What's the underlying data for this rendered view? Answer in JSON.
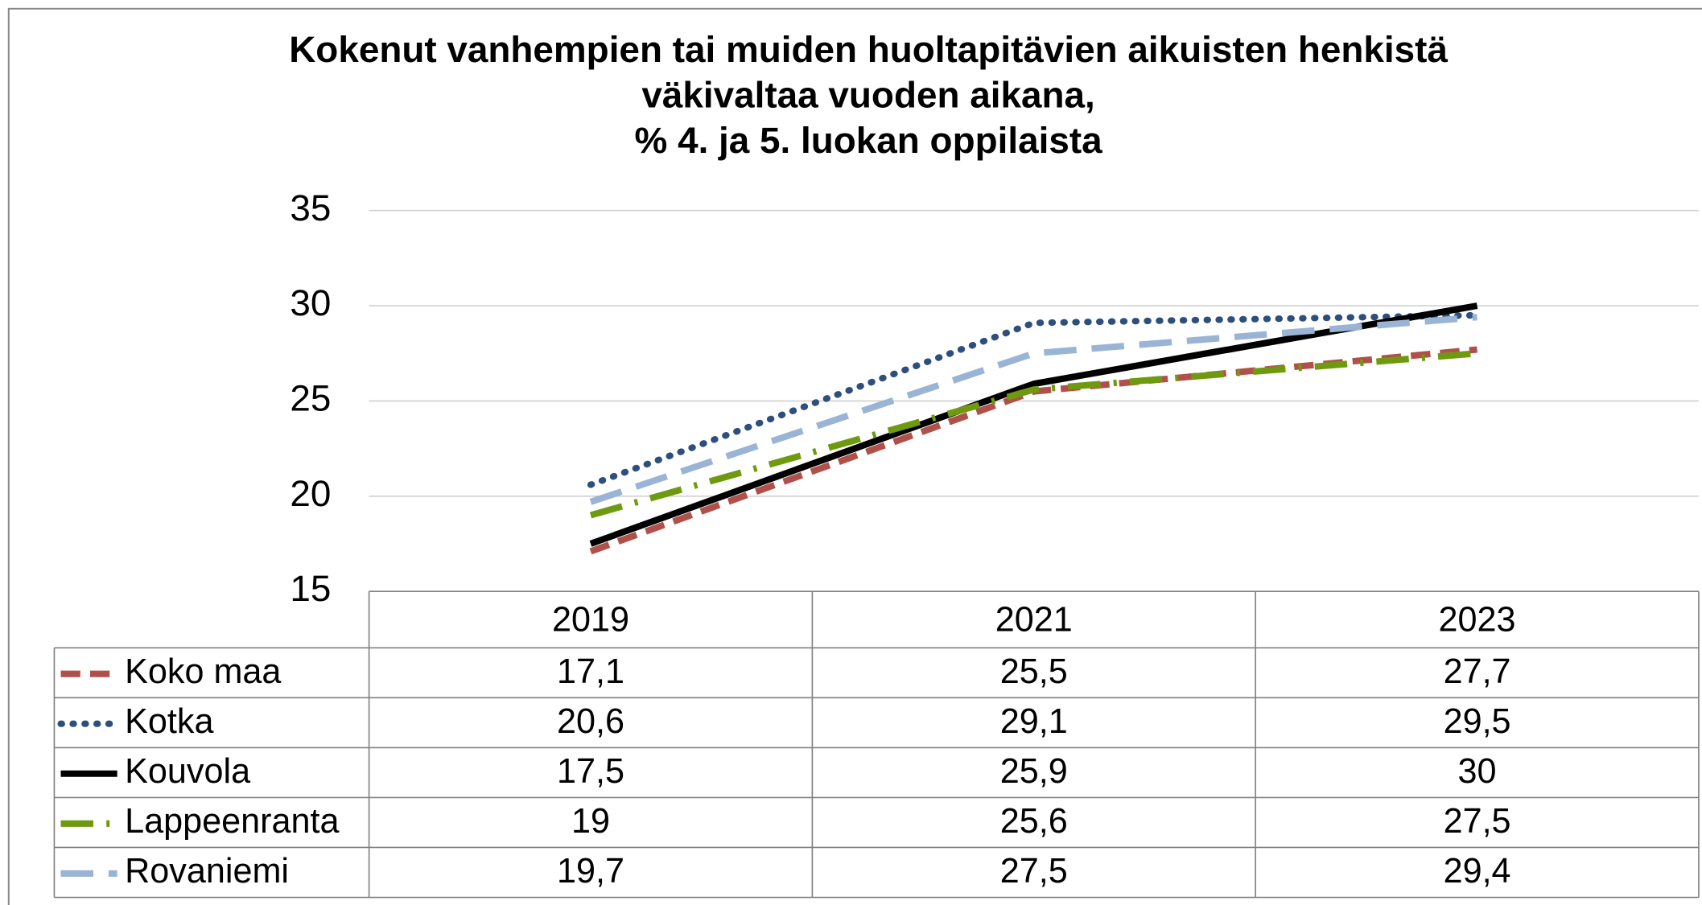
{
  "chart_data": {
    "type": "line",
    "title": [
      "Kokenut vanhempien tai muiden huoltapitävien aikuisten henkistä",
      "väkivaltaa vuoden aikana,",
      "% 4. ja 5. luokan oppilaista"
    ],
    "categories": [
      "2019",
      "2021",
      "2023"
    ],
    "ylim": [
      15,
      35
    ],
    "yticks": [
      15,
      20,
      25,
      30,
      35
    ],
    "grid": true,
    "series": [
      {
        "name": "Koko maa",
        "color": "#b0504a",
        "values": [
          17.1,
          25.5,
          27.7
        ],
        "value_labels": [
          "17,1",
          "25,5",
          "27,7"
        ]
      },
      {
        "name": "Kotka",
        "color": "#2e4f7c",
        "values": [
          20.6,
          29.1,
          29.5
        ],
        "value_labels": [
          "20,6",
          "29,1",
          "29,5"
        ]
      },
      {
        "name": "Kouvola",
        "color": "#000000",
        "values": [
          17.5,
          25.9,
          30
        ],
        "value_labels": [
          "17,5",
          "25,9",
          "30"
        ]
      },
      {
        "name": "Lappeenranta",
        "color": "#6f9a10",
        "values": [
          19,
          25.6,
          27.5
        ],
        "value_labels": [
          "19",
          "25,6",
          "27,5"
        ]
      },
      {
        "name": "Rovaniemi",
        "color": "#9ab4d6",
        "values": [
          19.7,
          27.5,
          29.4
        ],
        "value_labels": [
          "19,7",
          "27,5",
          "29,4"
        ]
      }
    ]
  }
}
